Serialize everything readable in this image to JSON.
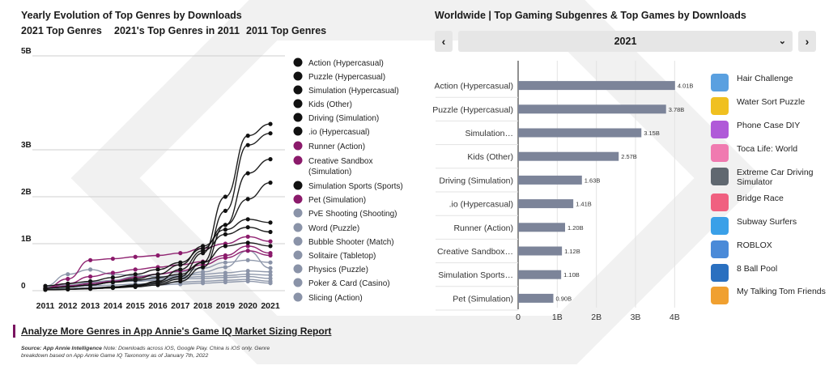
{
  "left": {
    "title": "Yearly Evolution of Top Genres by Downloads",
    "tabs": [
      {
        "label": "2021 Top Genres",
        "color": "#1a1a1a"
      },
      {
        "label": "2021's Top Genres in 2011",
        "color": "#8b1a6b"
      },
      {
        "label": "2011 Top Genres",
        "color": "#8a93a8"
      }
    ]
  },
  "right": {
    "title": "Worldwide | Top Gaming Subgenres & Top Games by Downloads",
    "prev_label": "‹",
    "next_label": "›",
    "year_selected": "2021",
    "chevron": "⌄",
    "games": [
      {
        "name": "Hair Challenge",
        "icon": "hair-challenge-icon",
        "color": "#5aa0e0"
      },
      {
        "name": "Water Sort Puzzle",
        "icon": "water-sort-puzzle-icon",
        "color": "#f0c020"
      },
      {
        "name": "Phone Case DIY",
        "icon": "phone-case-diy-icon",
        "color": "#b05ad8"
      },
      {
        "name": "Toca Life: World",
        "icon": "toca-life-world-icon",
        "color": "#f07ab0"
      },
      {
        "name": "Extreme Car Driving Simulator",
        "icon": "extreme-car-driving-icon",
        "color": "#606870"
      },
      {
        "name": "Bridge Race",
        "icon": "bridge-race-icon",
        "color": "#f06080"
      },
      {
        "name": "Subway Surfers",
        "icon": "subway-surfers-icon",
        "color": "#3aa0e8"
      },
      {
        "name": "ROBLOX",
        "icon": "roblox-icon",
        "color": "#4a8ad8"
      },
      {
        "name": "8 Ball Pool",
        "icon": "8-ball-pool-icon",
        "color": "#2a70c0"
      },
      {
        "name": "My Talking Tom Friends",
        "icon": "my-talking-tom-friends-icon",
        "color": "#f0a030"
      }
    ]
  },
  "footer": {
    "link": "Analyze More Genres in App Annie's Game IQ Market Sizing Report",
    "source_label": "Source: App Annie Intelligence",
    "note": " Note: Downloads across iOS, Google Play. China is iOS only. Genre breakdown based on App Annie Game IQ Taxonomy as of January 7th, 2022"
  },
  "chart_data": [
    {
      "type": "line",
      "x": [
        2011,
        2012,
        2013,
        2014,
        2015,
        2016,
        2017,
        2018,
        2019,
        2020,
        2021
      ],
      "ylim": [
        0,
        5
      ],
      "yticks": [
        0,
        1,
        2,
        3,
        5
      ],
      "ytick_labels": [
        "0",
        "1B",
        "2B",
        "3B",
        "5B"
      ],
      "series": [
        {
          "name": "Action (Hypercasual)",
          "color": "#111111",
          "values": [
            0.02,
            0.03,
            0.05,
            0.08,
            0.12,
            0.18,
            0.3,
            0.8,
            2.0,
            3.3,
            3.55
          ]
        },
        {
          "name": "Puzzle (Hypercasual)",
          "color": "#111111",
          "values": [
            0.02,
            0.03,
            0.05,
            0.07,
            0.1,
            0.15,
            0.25,
            0.6,
            1.7,
            3.1,
            3.35
          ]
        },
        {
          "name": "Simulation (Hypercasual)",
          "color": "#111111",
          "values": [
            0.02,
            0.03,
            0.04,
            0.06,
            0.08,
            0.12,
            0.2,
            0.5,
            1.4,
            2.5,
            2.8
          ]
        },
        {
          "name": "Kids (Other)",
          "color": "#111111",
          "values": [
            0.1,
            0.15,
            0.2,
            0.28,
            0.35,
            0.45,
            0.6,
            0.9,
            1.4,
            1.95,
            2.3
          ]
        },
        {
          "name": "Driving (Simulation)",
          "color": "#111111",
          "values": [
            0.05,
            0.08,
            0.12,
            0.18,
            0.25,
            0.35,
            0.55,
            0.95,
            1.3,
            1.52,
            1.45
          ]
        },
        {
          "name": ".io (Hypercasual)",
          "color": "#111111",
          "values": [
            0.02,
            0.03,
            0.04,
            0.06,
            0.1,
            0.2,
            0.45,
            0.85,
            1.2,
            1.35,
            1.25
          ]
        },
        {
          "name": "Runner (Action)",
          "color": "#8b1a6b",
          "values": [
            0.05,
            0.25,
            0.65,
            0.68,
            0.72,
            0.75,
            0.8,
            0.9,
            1.0,
            1.15,
            1.05
          ]
        },
        {
          "name": "Creative Sandbox (Simulation)",
          "color": "#8b1a6b",
          "values": [
            0.05,
            0.15,
            0.3,
            0.38,
            0.45,
            0.5,
            0.55,
            0.62,
            0.75,
            0.95,
            0.8
          ]
        },
        {
          "name": "Simulation Sports (Sports)",
          "color": "#111111",
          "values": [
            0.05,
            0.08,
            0.12,
            0.18,
            0.22,
            0.28,
            0.35,
            0.6,
            0.95,
            1.02,
            0.95
          ]
        },
        {
          "name": "Pet (Simulation)",
          "color": "#8b1a6b",
          "values": [
            0.05,
            0.1,
            0.15,
            0.2,
            0.28,
            0.35,
            0.42,
            0.55,
            0.7,
            0.85,
            0.75
          ]
        },
        {
          "name": "PvE Shooting (Shooting)",
          "color": "#8a93a8",
          "values": [
            0.05,
            0.1,
            0.18,
            0.22,
            0.3,
            0.35,
            0.4,
            0.48,
            0.6,
            0.65,
            0.6
          ]
        },
        {
          "name": "Word (Puzzle)",
          "color": "#8a93a8",
          "values": [
            0.05,
            0.08,
            0.12,
            0.18,
            0.22,
            0.26,
            0.3,
            0.4,
            0.5,
            0.85,
            0.48
          ]
        },
        {
          "name": "Bubble Shooter (Match)",
          "color": "#8a93a8",
          "values": [
            0.1,
            0.35,
            0.45,
            0.35,
            0.32,
            0.3,
            0.32,
            0.35,
            0.38,
            0.42,
            0.4
          ]
        },
        {
          "name": "Solitaire (Tabletop)",
          "color": "#8a93a8",
          "values": [
            0.08,
            0.12,
            0.16,
            0.2,
            0.22,
            0.25,
            0.28,
            0.3,
            0.32,
            0.35,
            0.33
          ]
        },
        {
          "name": "Physics (Puzzle)",
          "color": "#8a93a8",
          "values": [
            0.05,
            0.1,
            0.14,
            0.18,
            0.2,
            0.22,
            0.25,
            0.26,
            0.28,
            0.3,
            0.26
          ]
        },
        {
          "name": "Poker & Card (Casino)",
          "color": "#8a93a8",
          "values": [
            0.05,
            0.08,
            0.1,
            0.12,
            0.14,
            0.16,
            0.18,
            0.2,
            0.22,
            0.24,
            0.2
          ]
        },
        {
          "name": "Slicing (Action)",
          "color": "#8a93a8",
          "values": [
            0.03,
            0.05,
            0.06,
            0.08,
            0.1,
            0.12,
            0.14,
            0.16,
            0.18,
            0.2,
            0.16
          ]
        }
      ]
    },
    {
      "type": "bar",
      "orientation": "horizontal",
      "categories": [
        "Action (Hypercasual)",
        "Puzzle (Hypercasual)",
        "Simulation…",
        "Kids (Other)",
        "Driving (Simulation)",
        ".io (Hypercasual)",
        "Runner (Action)",
        "Creative Sandbox…",
        "Simulation Sports…",
        "Pet (Simulation)"
      ],
      "values": [
        4.01,
        3.78,
        3.15,
        2.57,
        1.63,
        1.41,
        1.2,
        1.12,
        1.1,
        0.9
      ],
      "data_labels": [
        "4.01B",
        "3.78B",
        "3.15B",
        "2.57B",
        "1.63B",
        "1.41B",
        "1.20B",
        "1.12B",
        "1.10B",
        "0.90B"
      ],
      "xlim": [
        0,
        4.2
      ],
      "xticks": [
        0,
        1,
        2,
        3,
        4
      ],
      "xtick_labels": [
        "0",
        "1B",
        "2B",
        "3B",
        "4B"
      ],
      "bar_color": "#7c8499"
    }
  ]
}
